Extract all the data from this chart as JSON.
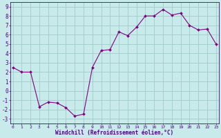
{
  "x": [
    0,
    1,
    2,
    3,
    4,
    5,
    6,
    7,
    8,
    9,
    10,
    11,
    12,
    13,
    14,
    15,
    16,
    17,
    18,
    19,
    20,
    21,
    22,
    23
  ],
  "y": [
    2.5,
    2.0,
    2.0,
    -1.7,
    -1.2,
    -1.3,
    -1.8,
    -2.7,
    -2.5,
    2.5,
    4.3,
    4.4,
    6.3,
    5.9,
    6.8,
    8.0,
    8.0,
    8.7,
    8.1,
    8.3,
    7.0,
    6.5,
    6.6,
    5.0
  ],
  "line_color": "#800080",
  "marker": "D",
  "marker_size": 2,
  "bg_color": "#c8eaea",
  "grid_color": "#a0cccc",
  "xlabel": "Windchill (Refroidissement éolien,°C)",
  "ylabel_ticks": [
    "-3",
    "-2",
    "-1",
    "0",
    "1",
    "2",
    "3",
    "4",
    "5",
    "6",
    "7",
    "8",
    "9"
  ],
  "ytick_vals": [
    -3,
    -2,
    -1,
    0,
    1,
    2,
    3,
    4,
    5,
    6,
    7,
    8,
    9
  ],
  "xtick_vals": [
    0,
    1,
    2,
    3,
    4,
    5,
    6,
    7,
    8,
    9,
    10,
    11,
    12,
    13,
    14,
    15,
    16,
    17,
    18,
    19,
    20,
    21,
    22,
    23
  ],
  "xlim": [
    -0.3,
    23.3
  ],
  "ylim": [
    -3.5,
    9.5
  ]
}
